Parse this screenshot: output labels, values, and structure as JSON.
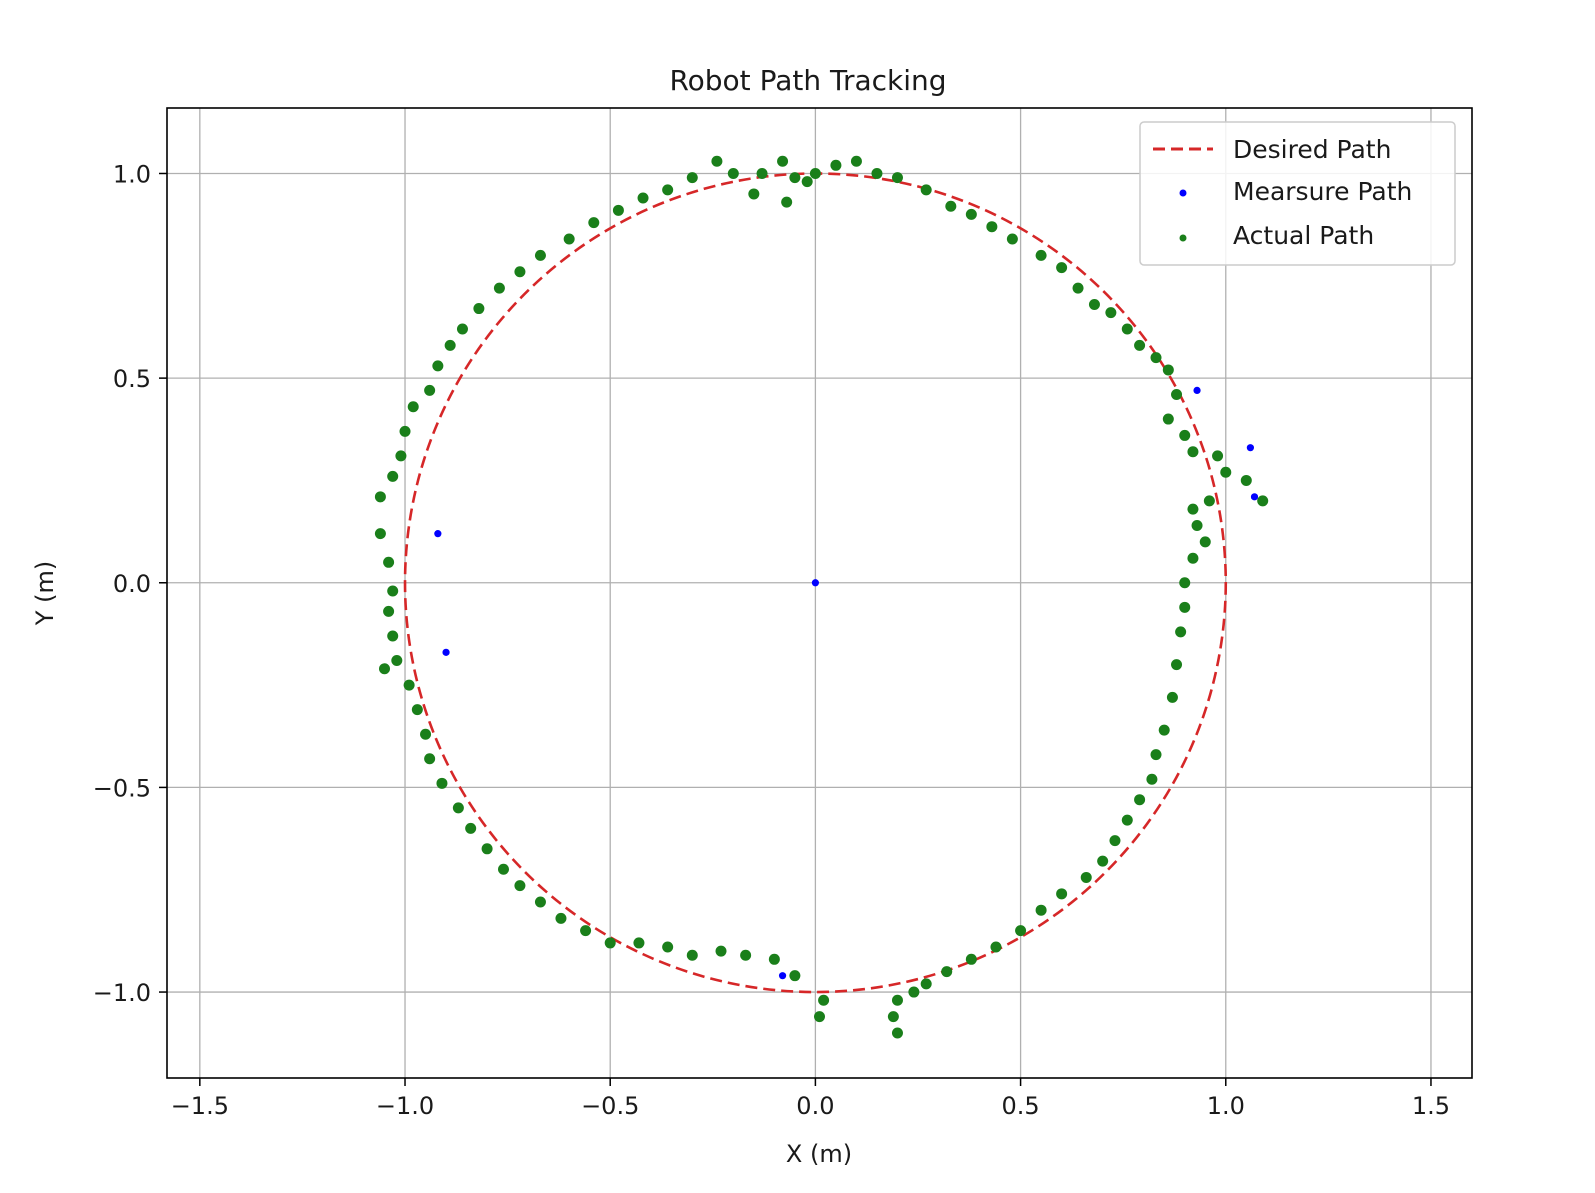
{
  "chart_data": {
    "type": "scatter",
    "title": "Robot Path Tracking",
    "xlabel": "X (m)",
    "ylabel": "Y (m)",
    "xlim": [
      -1.58,
      1.6
    ],
    "ylim": [
      -1.21,
      1.16
    ],
    "xticks": [
      -1.5,
      -1.0,
      -0.5,
      0.0,
      0.5,
      1.0,
      1.5
    ],
    "yticks": [
      -1.0,
      -0.5,
      0.0,
      0.5,
      1.0
    ],
    "xtick_labels": [
      "−1.5",
      "−1.0",
      "−0.5",
      "0.0",
      "0.5",
      "1.0",
      "1.5"
    ],
    "ytick_labels": [
      "−1.0",
      "−0.5",
      "0.0",
      "0.5",
      "1.0"
    ],
    "grid": true,
    "legend_position": "top-right",
    "series": [
      {
        "name": "Desired Path",
        "kind": "dashed-line",
        "color": "#d62728",
        "shape": "circle",
        "center": [
          0.0,
          0.0
        ],
        "radius": 1.0
      },
      {
        "name": "Mearsure Path",
        "kind": "scatter",
        "color": "#0000ff",
        "points": [
          [
            0.0,
            0.0
          ],
          [
            -0.92,
            0.12
          ],
          [
            -0.9,
            -0.17
          ],
          [
            0.93,
            0.47
          ],
          [
            1.07,
            0.21
          ],
          [
            1.06,
            0.33
          ],
          [
            -0.08,
            -0.96
          ]
        ]
      },
      {
        "name": "Actual Path",
        "kind": "scatter",
        "color": "#1a7f1a",
        "points": [
          [
            0.0,
            1.0
          ],
          [
            0.05,
            1.02
          ],
          [
            0.1,
            1.03
          ],
          [
            0.15,
            1.0
          ],
          [
            0.2,
            0.99
          ],
          [
            0.27,
            0.96
          ],
          [
            0.33,
            0.92
          ],
          [
            0.38,
            0.9
          ],
          [
            0.43,
            0.87
          ],
          [
            0.48,
            0.84
          ],
          [
            0.55,
            0.8
          ],
          [
            0.6,
            0.77
          ],
          [
            0.64,
            0.72
          ],
          [
            0.68,
            0.68
          ],
          [
            0.72,
            0.66
          ],
          [
            0.76,
            0.62
          ],
          [
            0.79,
            0.58
          ],
          [
            0.83,
            0.55
          ],
          [
            0.86,
            0.52
          ],
          [
            0.88,
            0.46
          ],
          [
            0.86,
            0.4
          ],
          [
            0.9,
            0.36
          ],
          [
            0.92,
            0.32
          ],
          [
            0.98,
            0.31
          ],
          [
            1.0,
            0.27
          ],
          [
            1.05,
            0.25
          ],
          [
            1.09,
            0.2
          ],
          [
            0.96,
            0.2
          ],
          [
            0.92,
            0.18
          ],
          [
            0.93,
            0.14
          ],
          [
            0.95,
            0.1
          ],
          [
            0.92,
            0.06
          ],
          [
            0.9,
            0.0
          ],
          [
            0.9,
            -0.06
          ],
          [
            0.89,
            -0.12
          ],
          [
            0.88,
            -0.2
          ],
          [
            0.87,
            -0.28
          ],
          [
            0.85,
            -0.36
          ],
          [
            0.83,
            -0.42
          ],
          [
            0.82,
            -0.48
          ],
          [
            0.79,
            -0.53
          ],
          [
            0.76,
            -0.58
          ],
          [
            0.73,
            -0.63
          ],
          [
            0.7,
            -0.68
          ],
          [
            0.66,
            -0.72
          ],
          [
            0.6,
            -0.76
          ],
          [
            0.55,
            -0.8
          ],
          [
            0.5,
            -0.85
          ],
          [
            0.44,
            -0.89
          ],
          [
            0.38,
            -0.92
          ],
          [
            0.32,
            -0.95
          ],
          [
            0.27,
            -0.98
          ],
          [
            0.24,
            -1.0
          ],
          [
            0.2,
            -1.02
          ],
          [
            0.19,
            -1.06
          ],
          [
            0.2,
            -1.1
          ],
          [
            0.02,
            -1.02
          ],
          [
            0.01,
            -1.06
          ],
          [
            -0.05,
            -0.96
          ],
          [
            -0.1,
            -0.92
          ],
          [
            -0.17,
            -0.91
          ],
          [
            -0.23,
            -0.9
          ],
          [
            -0.3,
            -0.91
          ],
          [
            -0.36,
            -0.89
          ],
          [
            -0.43,
            -0.88
          ],
          [
            -0.5,
            -0.88
          ],
          [
            -0.56,
            -0.85
          ],
          [
            -0.62,
            -0.82
          ],
          [
            -0.67,
            -0.78
          ],
          [
            -0.72,
            -0.74
          ],
          [
            -0.76,
            -0.7
          ],
          [
            -0.8,
            -0.65
          ],
          [
            -0.84,
            -0.6
          ],
          [
            -0.87,
            -0.55
          ],
          [
            -0.91,
            -0.49
          ],
          [
            -0.94,
            -0.43
          ],
          [
            -0.95,
            -0.37
          ],
          [
            -0.97,
            -0.31
          ],
          [
            -0.99,
            -0.25
          ],
          [
            -1.02,
            -0.19
          ],
          [
            -1.05,
            -0.21
          ],
          [
            -1.03,
            -0.13
          ],
          [
            -1.04,
            -0.07
          ],
          [
            -1.03,
            -0.02
          ],
          [
            -1.04,
            0.05
          ],
          [
            -1.06,
            0.12
          ],
          [
            -1.06,
            0.21
          ],
          [
            -1.03,
            0.26
          ],
          [
            -1.01,
            0.31
          ],
          [
            -1.0,
            0.37
          ],
          [
            -0.98,
            0.43
          ],
          [
            -0.94,
            0.47
          ],
          [
            -0.92,
            0.53
          ],
          [
            -0.89,
            0.58
          ],
          [
            -0.86,
            0.62
          ],
          [
            -0.82,
            0.67
          ],
          [
            -0.77,
            0.72
          ],
          [
            -0.72,
            0.76
          ],
          [
            -0.67,
            0.8
          ],
          [
            -0.6,
            0.84
          ],
          [
            -0.54,
            0.88
          ],
          [
            -0.48,
            0.91
          ],
          [
            -0.42,
            0.94
          ],
          [
            -0.36,
            0.96
          ],
          [
            -0.3,
            0.99
          ],
          [
            -0.24,
            1.03
          ],
          [
            -0.2,
            1.0
          ],
          [
            -0.15,
            0.95
          ],
          [
            -0.13,
            1.0
          ],
          [
            -0.08,
            1.03
          ],
          [
            -0.05,
            0.99
          ],
          [
            -0.02,
            0.98
          ],
          [
            -0.07,
            0.93
          ]
        ]
      }
    ]
  }
}
